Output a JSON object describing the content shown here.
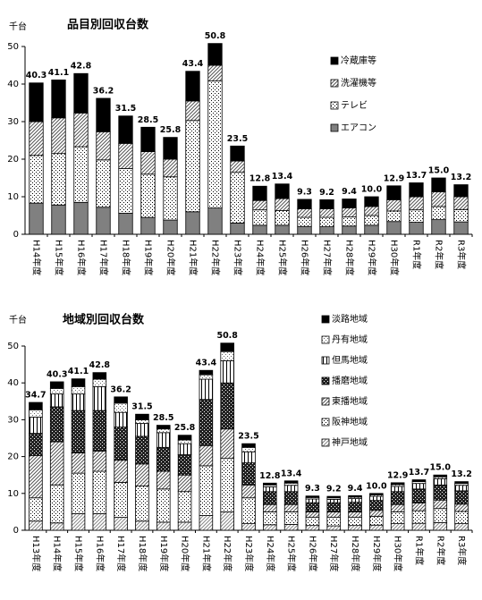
{
  "chart_data": [
    {
      "type": "bar",
      "stacked": true,
      "title": "品目別回収台数",
      "y_label": "千台",
      "legend": "upper right",
      "categories": [
        "H14年度",
        "H15年度",
        "H16年度",
        "H17年度",
        "H18年度",
        "H19年度",
        "H20年度",
        "H21年度",
        "H22年度",
        "H23年度",
        "H24年度",
        "H25年度",
        "H26年度",
        "H27年度",
        "H28年度",
        "H29年度",
        "H30年度",
        "R1年度",
        "R2年度",
        "R3年度"
      ],
      "series": [
        {
          "name": "エアコン",
          "color": "#808080",
          "pattern": "solid",
          "values": [
            8.3,
            7.8,
            8.5,
            7.2,
            5.6,
            4.5,
            3.8,
            6.0,
            7.0,
            3.0,
            2.4,
            2.4,
            2.1,
            2.0,
            2.2,
            2.4,
            3.4,
            3.2,
            3.9,
            3.3
          ]
        },
        {
          "name": "テレビ",
          "color": "#000000",
          "pattern": "dots",
          "values": [
            12.7,
            13.7,
            14.8,
            12.6,
            11.9,
            11.5,
            11.5,
            24.3,
            33.8,
            13.5,
            4.1,
            3.9,
            2.4,
            2.5,
            2.4,
            2.6,
            2.8,
            3.3,
            3.5,
            3.3
          ]
        },
        {
          "name": "洗濯機等",
          "color": "#555555",
          "pattern": "hatch",
          "values": [
            9.0,
            9.5,
            9.0,
            7.5,
            6.7,
            6.0,
            4.7,
            5.2,
            4.2,
            3.0,
            2.5,
            3.2,
            2.3,
            2.3,
            2.4,
            2.4,
            3.0,
            3.5,
            3.9,
            3.4
          ]
        },
        {
          "name": "冷蔵庫等",
          "color": "#000000",
          "pattern": "solid",
          "values": [
            10.3,
            10.1,
            10.5,
            8.9,
            7.3,
            6.5,
            5.8,
            7.9,
            5.8,
            4.0,
            3.8,
            3.9,
            2.5,
            2.4,
            2.4,
            2.6,
            3.7,
            3.7,
            3.7,
            3.2
          ]
        }
      ],
      "totals": [
        40.3,
        41.1,
        42.8,
        36.2,
        31.5,
        28.5,
        25.8,
        43.4,
        50.8,
        23.5,
        12.8,
        13.4,
        9.3,
        9.2,
        9.4,
        10.0,
        12.9,
        13.7,
        15.0,
        13.2
      ],
      "total_labels": [
        "40.3",
        "41.1",
        "42.8",
        "36.2",
        "31.5",
        "28.5",
        "25.8",
        "43.4",
        "50.8",
        "23.5",
        "12.8",
        "13.4",
        "9.3",
        "9.2",
        "9.4",
        "10.0",
        "12.9",
        "13.7",
        "15.0",
        "13.2"
      ],
      "ylim": [
        0,
        50
      ],
      "yticks": [
        0,
        10,
        20,
        30,
        40,
        50
      ]
    },
    {
      "type": "bar",
      "stacked": true,
      "title": "地域別回収台数",
      "y_label": "千台",
      "legend": "upper right",
      "categories": [
        "H13年度",
        "H14年度",
        "H15年度",
        "H16年度",
        "H17年度",
        "H18年度",
        "H19年度",
        "H20年度",
        "H21年度",
        "H22年度",
        "H23年度",
        "H24年度",
        "H25年度",
        "H26年度",
        "H27年度",
        "H28年度",
        "H29年度",
        "H30年度",
        "R1年度",
        "R2年度",
        "R3年度"
      ],
      "series": [
        {
          "name": "神戸地域",
          "color": "#888888",
          "pattern": "hatch",
          "values": [
            2.5,
            2.0,
            4.5,
            4.5,
            3.5,
            2.5,
            2.2,
            2.2,
            4.0,
            5.0,
            1.8,
            1.5,
            1.6,
            1.3,
            1.2,
            1.3,
            1.4,
            1.8,
            1.9,
            2.1,
            1.8
          ]
        },
        {
          "name": "阪神地域",
          "color": "#000000",
          "pattern": "dots",
          "values": [
            6.3,
            10.3,
            11.0,
            11.5,
            9.5,
            9.5,
            9.0,
            8.3,
            13.5,
            14.5,
            7.0,
            3.5,
            3.4,
            2.2,
            2.3,
            2.2,
            2.4,
            3.2,
            3.4,
            3.8,
            3.3
          ]
        },
        {
          "name": "東播地域",
          "color": "#555555",
          "pattern": "hatch",
          "values": [
            11.5,
            11.7,
            5.5,
            5.5,
            6.0,
            6.0,
            4.8,
            4.5,
            5.5,
            8.0,
            3.5,
            2.0,
            2.0,
            1.5,
            1.5,
            1.5,
            1.6,
            2.0,
            2.1,
            2.3,
            2.0
          ]
        },
        {
          "name": "播磨地域",
          "color": "#222222",
          "pattern": "checker",
          "values": [
            6.0,
            9.5,
            11.5,
            11.0,
            9.0,
            7.5,
            6.5,
            5.5,
            12.5,
            12.5,
            6.0,
            3.5,
            3.5,
            2.5,
            2.5,
            2.6,
            2.7,
            3.5,
            3.8,
            4.1,
            3.6
          ]
        },
        {
          "name": "但馬地域",
          "color": "#000000",
          "pattern": "vlines",
          "values": [
            4.4,
            3.5,
            4.5,
            6.5,
            4.0,
            3.5,
            4.0,
            3.0,
            5.5,
            6.0,
            3.0,
            1.3,
            1.7,
            1.0,
            0.9,
            1.0,
            1.1,
            1.4,
            1.5,
            1.7,
            1.5
          ]
        },
        {
          "name": "丹有地域",
          "color": "#666666",
          "pattern": "dots",
          "values": [
            2.0,
            1.5,
            2.0,
            2.0,
            2.5,
            1.0,
            1.0,
            1.0,
            1.2,
            2.5,
            1.2,
            0.5,
            0.6,
            0.4,
            0.4,
            0.4,
            0.4,
            0.5,
            0.5,
            0.5,
            0.5
          ]
        },
        {
          "name": "淡路地域",
          "color": "#000000",
          "pattern": "solid",
          "values": [
            2.0,
            1.8,
            2.1,
            1.8,
            1.7,
            1.5,
            1.0,
            1.3,
            1.2,
            2.3,
            1.0,
            0.5,
            0.6,
            0.4,
            0.4,
            0.4,
            0.4,
            0.5,
            0.5,
            0.5,
            0.5
          ]
        }
      ],
      "totals": [
        34.7,
        40.3,
        41.1,
        42.8,
        36.2,
        31.5,
        28.5,
        25.8,
        43.4,
        50.8,
        23.5,
        12.8,
        13.4,
        9.3,
        9.2,
        9.4,
        10.0,
        12.9,
        13.7,
        15.0,
        13.2
      ],
      "total_labels": [
        "34.7",
        "40.3",
        "41.1",
        "42.8",
        "36.2",
        "31.5",
        "28.5",
        "25.8",
        "43.4",
        "50.8",
        "23.5",
        "12.8",
        "13.4",
        "9.3",
        "9.2",
        "9.4",
        "10.0",
        "12.9",
        "13.7",
        "15.0",
        "13.2"
      ],
      "ylim": [
        0,
        50
      ],
      "yticks": [
        0,
        10,
        20,
        30,
        40,
        50
      ]
    }
  ]
}
